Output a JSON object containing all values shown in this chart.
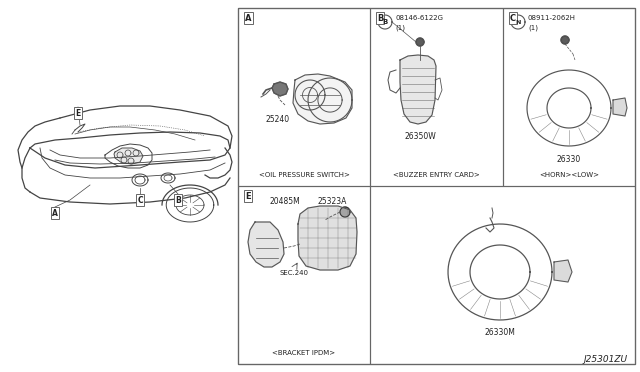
{
  "bg_color": "#ffffff",
  "line_color": "#333333",
  "text_color": "#222222",
  "border_color": "#666666",
  "diagram_ref": "J25301ZU",
  "panel_A": {
    "label": "A",
    "caption": "<OIL PRESSURE SWITCH>",
    "part": "25240"
  },
  "panel_B": {
    "label": "B",
    "caption": "<BUZZER ENTRY CARD>",
    "part": "26350W",
    "bolt_label": "B",
    "bolt_num": "08146-6122G",
    "bolt_qty": "(1)"
  },
  "panel_C": {
    "label": "C",
    "caption": "<HORN><LOW>",
    "part": "26330",
    "bolt_label": "N",
    "bolt_num": "08911-2062H",
    "bolt_qty": "(1)"
  },
  "panel_E": {
    "label": "E",
    "caption": "<BRACKET IPDM>",
    "parts": [
      "20485M",
      "25323A"
    ],
    "sec": "SEC.240"
  },
  "panel_BR": {
    "part": "26330M"
  }
}
